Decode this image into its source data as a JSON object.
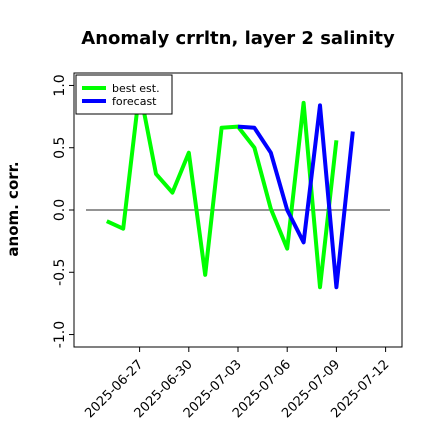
{
  "chart_data": {
    "type": "line",
    "title": "Anomaly crrltn, layer 2 salinity",
    "xlabel": "",
    "ylabel": "anom. corr.",
    "ylim": [
      -1.1,
      1.1
    ],
    "yticks": [
      "-1.0",
      "-0.5",
      "0.0",
      "0.5",
      "1.0"
    ],
    "xlim": [
      "2025-06-23",
      "2025-07-13"
    ],
    "xticks": [
      "2025-06-27",
      "2025-06-30",
      "2025-07-03",
      "2025-07-06",
      "2025-07-09",
      "2025-07-12"
    ],
    "highlight_tick": "2025-07-03",
    "reference_line": 0,
    "grid": false,
    "legend_position": "top-left",
    "colors": {
      "best_est": "#00ff00",
      "forecast": "#0000ff",
      "highlight_tick": "#228b22",
      "zero_line": "#555555"
    },
    "series": [
      {
        "name": "best est.",
        "key": "best_est",
        "x": [
          "2025-06-25",
          "2025-06-26",
          "2025-06-27",
          "2025-06-28",
          "2025-06-29",
          "2025-06-30",
          "2025-07-01",
          "2025-07-02",
          "2025-07-03",
          "2025-07-04",
          "2025-07-05",
          "2025-07-06",
          "2025-07-07",
          "2025-07-08",
          "2025-07-09",
          "2025-07-10"
        ],
        "values": [
          -0.09,
          -0.15,
          0.97,
          0.29,
          0.14,
          0.46,
          -0.52,
          0.66,
          0.67,
          0.5,
          0.01,
          -0.31,
          0.86,
          -0.62,
          0.56,
          null
        ]
      },
      {
        "name": "forecast",
        "key": "forecast",
        "x": [
          "2025-07-03",
          "2025-07-04",
          "2025-07-05",
          "2025-07-06",
          "2025-07-07",
          "2025-07-08",
          "2025-07-09",
          "2025-07-10"
        ],
        "values": [
          0.67,
          0.66,
          0.46,
          0.0,
          -0.26,
          0.84,
          -0.62,
          0.63
        ]
      }
    ]
  }
}
